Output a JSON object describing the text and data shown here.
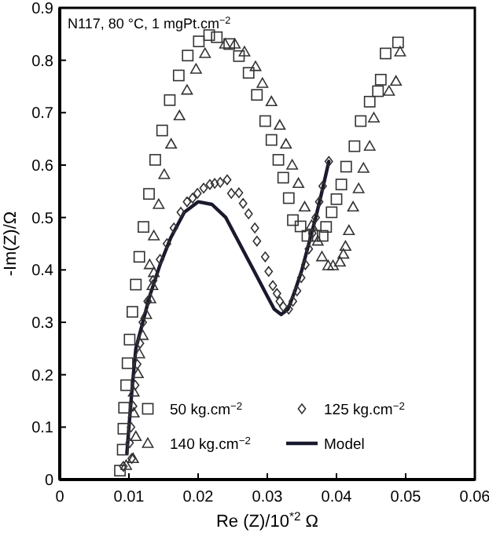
{
  "chart_data": {
    "type": "scatter",
    "xlabel": "Re (Z)/10$^{*2}$ Ω",
    "ylabel": "-Im(Z)/Ω",
    "annotations": [
      "N117, 80 °C, 1 mgPt.cm$^{−2}$"
    ],
    "xlim": [
      0,
      0.06
    ],
    "xticks": [
      0,
      0.01,
      0.02,
      0.03,
      0.04,
      0.05,
      0.06
    ],
    "ylim": [
      0,
      0.9
    ],
    "yticks": [
      0,
      0.1,
      0.2,
      0.3,
      0.4,
      0.5,
      0.6,
      0.7,
      0.8,
      0.9
    ],
    "grid": false,
    "legend": "bottom right",
    "series": [
      {
        "name": "50 kg.cm$^{−2}$",
        "color": "#333333",
        "marker": "square",
        "x": [
          0.0087,
          0.0091,
          0.0092,
          0.0093,
          0.0096,
          0.0098,
          0.0101,
          0.0105,
          0.011,
          0.0115,
          0.0121,
          0.0129,
          0.0138,
          0.0148,
          0.0159,
          0.0172,
          0.0185,
          0.0201,
          0.0216,
          0.0227,
          0.0245,
          0.0259,
          0.0273,
          0.0285,
          0.0297,
          0.0306,
          0.0316,
          0.0323,
          0.0331,
          0.0337,
          0.0348,
          0.0358,
          0.0368,
          0.038,
          0.0385,
          0.0393,
          0.04,
          0.0407,
          0.0414,
          0.0426,
          0.0435,
          0.0448,
          0.046,
          0.0464,
          0.0471,
          0.0489
        ],
        "values": [
          0.017,
          0.057,
          0.097,
          0.137,
          0.18,
          0.222,
          0.267,
          0.32,
          0.372,
          0.425,
          0.482,
          0.545,
          0.61,
          0.666,
          0.724,
          0.771,
          0.809,
          0.836,
          0.848,
          0.844,
          0.831,
          0.808,
          0.776,
          0.734,
          0.684,
          0.648,
          0.61,
          0.576,
          0.537,
          0.495,
          0.483,
          0.465,
          0.465,
          0.465,
          0.482,
          0.51,
          0.535,
          0.563,
          0.597,
          0.636,
          0.684,
          0.721,
          0.741,
          0.763,
          0.813,
          0.834
        ]
      },
      {
        "name": "125 kg.cm$^{−2}$",
        "color": "#333333",
        "marker": "diamond",
        "x": [
          0.0092,
          0.0104,
          0.0101,
          0.0103,
          0.0106,
          0.0109,
          0.0112,
          0.0116,
          0.012,
          0.0127,
          0.0135,
          0.0145,
          0.0155,
          0.0165,
          0.0175,
          0.0184,
          0.0192,
          0.0199,
          0.0208,
          0.0217,
          0.0224,
          0.0232,
          0.0242,
          0.0248,
          0.0259,
          0.0265,
          0.0273,
          0.0282,
          0.0285,
          0.0297,
          0.0302,
          0.0308,
          0.0314,
          0.0318,
          0.0323,
          0.0331,
          0.0337,
          0.0343,
          0.0349,
          0.0355,
          0.036,
          0.0365,
          0.037,
          0.0375,
          0.038,
          0.0389
        ],
        "values": [
          0.025,
          0.04,
          0.07,
          0.1,
          0.14,
          0.18,
          0.22,
          0.26,
          0.3,
          0.34,
          0.38,
          0.42,
          0.45,
          0.48,
          0.51,
          0.53,
          0.537,
          0.546,
          0.556,
          0.563,
          0.565,
          0.567,
          0.572,
          0.546,
          0.547,
          0.527,
          0.507,
          0.48,
          0.455,
          0.425,
          0.397,
          0.37,
          0.355,
          0.34,
          0.33,
          0.325,
          0.34,
          0.36,
          0.385,
          0.41,
          0.44,
          0.47,
          0.5,
          0.53,
          0.56,
          0.607
        ]
      },
      {
        "name": "140 kg.cm$^{−2}$",
        "color": "#333333",
        "marker": "triangle",
        "x": [
          0.0096,
          0.0106,
          0.011,
          0.0107,
          0.0107,
          0.0113,
          0.0115,
          0.012,
          0.0125,
          0.0131,
          0.0134,
          0.0136,
          0.013,
          0.0136,
          0.0143,
          0.0151,
          0.0161,
          0.0173,
          0.0184,
          0.0197,
          0.021,
          0.0239,
          0.0253,
          0.0267,
          0.0283,
          0.0293,
          0.0306,
          0.0318,
          0.0327,
          0.0336,
          0.0345,
          0.0354,
          0.0364,
          0.0373,
          0.0379,
          0.0388,
          0.0395,
          0.0405,
          0.041,
          0.0413,
          0.0418,
          0.0424,
          0.0432,
          0.0439,
          0.0448,
          0.0454,
          0.0476,
          0.0486,
          0.0492
        ],
        "values": [
          0.027,
          0.04,
          0.082,
          0.127,
          0.167,
          0.202,
          0.24,
          0.275,
          0.315,
          0.345,
          0.37,
          0.395,
          0.41,
          0.465,
          0.525,
          0.582,
          0.64,
          0.694,
          0.743,
          0.783,
          0.813,
          0.831,
          0.831,
          0.816,
          0.788,
          0.756,
          0.721,
          0.676,
          0.64,
          0.6,
          0.565,
          0.52,
          0.485,
          0.455,
          0.425,
          0.408,
          0.408,
          0.415,
          0.43,
          0.445,
          0.475,
          0.52,
          0.555,
          0.594,
          0.636,
          0.69,
          0.741,
          0.76,
          0.816
        ]
      },
      {
        "name": "Model",
        "type": "line",
        "color": "#1a1a2e",
        "marker": "none",
        "line_style": "solid",
        "x": [
          0.0097,
          0.01,
          0.0105,
          0.011,
          0.012,
          0.013,
          0.0145,
          0.016,
          0.018,
          0.02,
          0.022,
          0.024,
          0.026,
          0.028,
          0.03,
          0.031,
          0.032,
          0.033,
          0.034,
          0.035,
          0.036,
          0.037,
          0.038,
          0.0389
        ],
        "values": [
          0.05,
          0.1,
          0.18,
          0.25,
          0.3,
          0.35,
          0.41,
          0.46,
          0.51,
          0.53,
          0.525,
          0.5,
          0.45,
          0.4,
          0.35,
          0.325,
          0.315,
          0.325,
          0.36,
          0.4,
          0.45,
          0.5,
          0.555,
          0.607
        ]
      }
    ]
  }
}
